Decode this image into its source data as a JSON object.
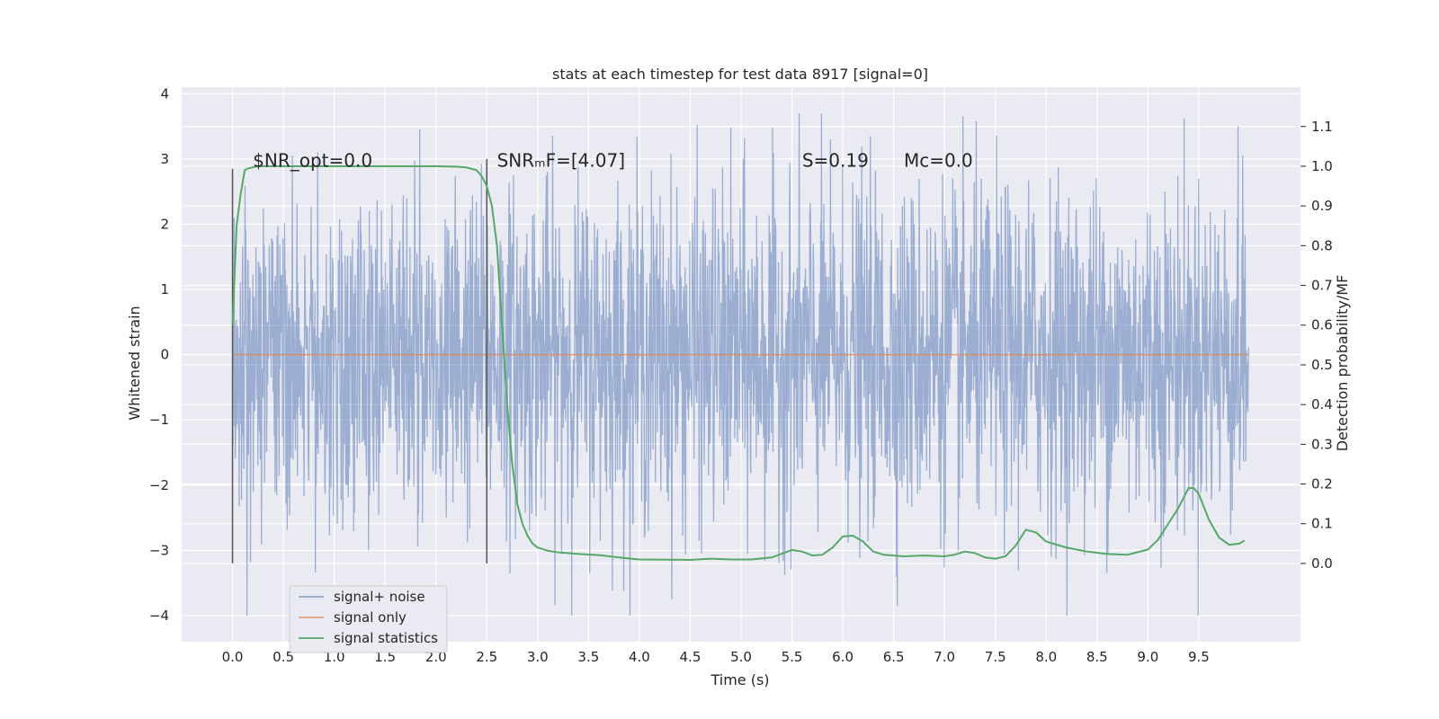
{
  "chart_data": {
    "type": "line",
    "title": "stats at each timestep for test data 8917 [signal=0]",
    "xlabel": "Time (s)",
    "ylabel": "Whitened strain",
    "y2label": "Detection probability/MF",
    "xlim": [
      -0.5,
      10.5
    ],
    "ylim": [
      -4.4,
      4.1
    ],
    "y2lim": [
      -0.197,
      1.199
    ],
    "x_ticks": [
      "0.0",
      "0.5",
      "1.0",
      "1.5",
      "2.0",
      "2.5",
      "3.0",
      "3.5",
      "4.0",
      "4.5",
      "5.0",
      "5.5",
      "6.0",
      "6.5",
      "7.0",
      "7.5",
      "8.0",
      "8.5",
      "9.0",
      "9.5"
    ],
    "y_ticks": [
      "4",
      "3",
      "2",
      "1",
      "0",
      "−1",
      "−2",
      "−3",
      "−4"
    ],
    "y2_ticks": [
      "1.1",
      "1.0",
      "0.9",
      "0.8",
      "0.7",
      "0.6",
      "0.5",
      "0.4",
      "0.3",
      "0.2",
      "0.1",
      "0.0"
    ],
    "grid": true,
    "legend_position": "lower-left",
    "annotations": [
      {
        "x": 0.2,
        "y": 2.88,
        "label": "$NR_opt=0.0"
      },
      {
        "x": 2.6,
        "y": 2.88,
        "label": "SNRₘF=[4.07]"
      },
      {
        "x": 5.6,
        "y": 2.88,
        "label": "S=0.19"
      },
      {
        "x": 6.6,
        "y": 2.88,
        "label": "Mᴄ=0.0"
      }
    ],
    "vertical_markers": [
      {
        "x": 0.0,
        "y_top": 2.85,
        "y_bottom": -3.2
      },
      {
        "x": 2.5,
        "y_top": 3.0,
        "y_bottom": -3.2
      }
    ],
    "series": [
      {
        "name": "signal+ noise",
        "color": "#4c72b0",
        "style": "noise",
        "x_range": [
          0.0,
          9.99
        ],
        "envelope_max": 3.7,
        "envelope_min": -4.0,
        "typical_abs": 1.6
      },
      {
        "name": "signal only",
        "color": "#dd8452",
        "x": [
          0.0,
          9.99
        ],
        "values": [
          0.0,
          0.0
        ]
      },
      {
        "name": "signal statistics",
        "color": "#55a868",
        "axis": "right",
        "x": [
          0.0,
          0.04,
          0.08,
          0.12,
          0.16,
          0.25,
          0.5,
          1.0,
          1.5,
          2.0,
          2.2,
          2.3,
          2.4,
          2.45,
          2.5,
          2.55,
          2.6,
          2.65,
          2.7,
          2.75,
          2.8,
          2.85,
          2.9,
          2.95,
          3.0,
          3.1,
          3.2,
          3.4,
          3.6,
          3.8,
          4.0,
          4.5,
          4.7,
          4.9,
          5.1,
          5.3,
          5.5,
          5.6,
          5.7,
          5.8,
          5.9,
          6.0,
          6.1,
          6.2,
          6.3,
          6.4,
          6.6,
          6.8,
          7.0,
          7.1,
          7.2,
          7.3,
          7.4,
          7.5,
          7.6,
          7.7,
          7.8,
          7.9,
          8.0,
          8.2,
          8.4,
          8.6,
          8.8,
          9.0,
          9.1,
          9.2,
          9.3,
          9.4,
          9.45,
          9.5,
          9.6,
          9.7,
          9.8,
          9.9,
          9.95
        ],
        "values": [
          0.6,
          0.85,
          0.93,
          0.99,
          0.995,
          1.0,
          1.0,
          1.0,
          1.0,
          1.0,
          0.999,
          0.997,
          0.99,
          0.975,
          0.95,
          0.9,
          0.8,
          0.6,
          0.4,
          0.25,
          0.15,
          0.1,
          0.07,
          0.05,
          0.04,
          0.032,
          0.028,
          0.024,
          0.021,
          0.015,
          0.01,
          0.009,
          0.012,
          0.01,
          0.01,
          0.015,
          0.034,
          0.03,
          0.02,
          0.022,
          0.04,
          0.068,
          0.07,
          0.055,
          0.03,
          0.022,
          0.018,
          0.02,
          0.018,
          0.022,
          0.03,
          0.026,
          0.015,
          0.012,
          0.018,
          0.045,
          0.085,
          0.078,
          0.055,
          0.04,
          0.03,
          0.024,
          0.022,
          0.035,
          0.06,
          0.1,
          0.14,
          0.19,
          0.19,
          0.175,
          0.11,
          0.065,
          0.047,
          0.05,
          0.058
        ]
      }
    ]
  }
}
